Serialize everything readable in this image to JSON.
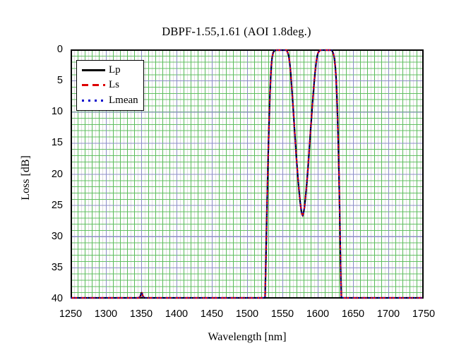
{
  "title": "DBPF-1.55,1.61  (AOI 1.8deg.)",
  "x_axis": {
    "label": "Wavelength [nm]",
    "min": 1250,
    "max": 1750,
    "ticks": [
      "1250",
      "1300",
      "1350",
      "1400",
      "1450",
      "1500",
      "1550",
      "1600",
      "1650",
      "1700",
      "1750"
    ]
  },
  "y_axis": {
    "label": "Loss [dB]",
    "min": 0,
    "max": 40,
    "ticks": [
      "0",
      "5",
      "10",
      "15",
      "20",
      "25",
      "30",
      "35",
      "40"
    ]
  },
  "legend": {
    "items": [
      {
        "label": "Lp",
        "color": "#000000",
        "style": "solid"
      },
      {
        "label": "Ls",
        "color": "#dd0000",
        "style": "dashed"
      },
      {
        "label": "Lmean",
        "color": "#0000cc",
        "style": "dotted"
      }
    ]
  },
  "colors": {
    "frame": "#000000",
    "grid_minor_green": "#5cbb5c",
    "grid_major_blue": "#8c8cc8",
    "grid_fine_gray": "#dedede"
  },
  "chart_data": {
    "type": "line",
    "title": "DBPF-1.55,1.61  (AOI 1.8deg.)",
    "xlabel": "Wavelength [nm]",
    "ylabel": "Loss [dB]",
    "xlim": [
      1250,
      1750
    ],
    "ylim": [
      0,
      40
    ],
    "y_inverted": true,
    "grid": "on",
    "legend_position": "upper-left",
    "series": [
      {
        "name": "Lp",
        "style": "solid",
        "color": "#000000",
        "points": "shared"
      },
      {
        "name": "Ls",
        "style": "dashed",
        "color": "#dd0000",
        "points": "shared"
      },
      {
        "name": "Lmean",
        "style": "dotted",
        "color": "#0000cc",
        "points": "shared"
      }
    ],
    "points": [
      [
        1250,
        40
      ],
      [
        1346,
        40
      ],
      [
        1348,
        39.8
      ],
      [
        1349.5,
        39.2
      ],
      [
        1350.5,
        39.2
      ],
      [
        1352,
        39.8
      ],
      [
        1354,
        40
      ],
      [
        1525.5,
        40
      ],
      [
        1526.5,
        35
      ],
      [
        1527.5,
        29.5
      ],
      [
        1528.5,
        24
      ],
      [
        1529.5,
        19
      ],
      [
        1530.5,
        14.5
      ],
      [
        1531.5,
        10.5
      ],
      [
        1532.5,
        7
      ],
      [
        1533.5,
        4.3
      ],
      [
        1534.5,
        2.4
      ],
      [
        1535.5,
        1.2
      ],
      [
        1537,
        0.4
      ],
      [
        1539,
        0.08
      ],
      [
        1541,
        0
      ],
      [
        1556,
        0
      ],
      [
        1557.5,
        0.3
      ],
      [
        1559,
        0.9
      ],
      [
        1560.5,
        2
      ],
      [
        1562,
        3.8
      ],
      [
        1564,
        6.8
      ],
      [
        1566,
        10.2
      ],
      [
        1568,
        13.8
      ],
      [
        1570,
        17.2
      ],
      [
        1572,
        20.3
      ],
      [
        1574,
        22.9
      ],
      [
        1575.5,
        24.6
      ],
      [
        1577,
        25.9
      ],
      [
        1578,
        26.5
      ],
      [
        1579,
        26.7
      ],
      [
        1580,
        26.4
      ],
      [
        1581.5,
        25.4
      ],
      [
        1583,
        23.8
      ],
      [
        1585,
        21.3
      ],
      [
        1587,
        18.3
      ],
      [
        1589,
        15.1
      ],
      [
        1591,
        11.8
      ],
      [
        1593,
        8.6
      ],
      [
        1595,
        5.7
      ],
      [
        1596.5,
        3.8
      ],
      [
        1598,
        2.2
      ],
      [
        1599.5,
        1
      ],
      [
        1601,
        0.4
      ],
      [
        1603,
        0.1
      ],
      [
        1605,
        0
      ],
      [
        1619.5,
        0
      ],
      [
        1621,
        0.1
      ],
      [
        1622.5,
        0.5
      ],
      [
        1624,
        1.3
      ],
      [
        1625.5,
        2.8
      ],
      [
        1626.5,
        4.5
      ],
      [
        1627.5,
        7
      ],
      [
        1628.5,
        10.5
      ],
      [
        1629.5,
        14.5
      ],
      [
        1630.5,
        19.5
      ],
      [
        1631.5,
        25.5
      ],
      [
        1632.5,
        32
      ],
      [
        1633.3,
        37
      ],
      [
        1634,
        40
      ],
      [
        1750,
        40
      ]
    ]
  }
}
